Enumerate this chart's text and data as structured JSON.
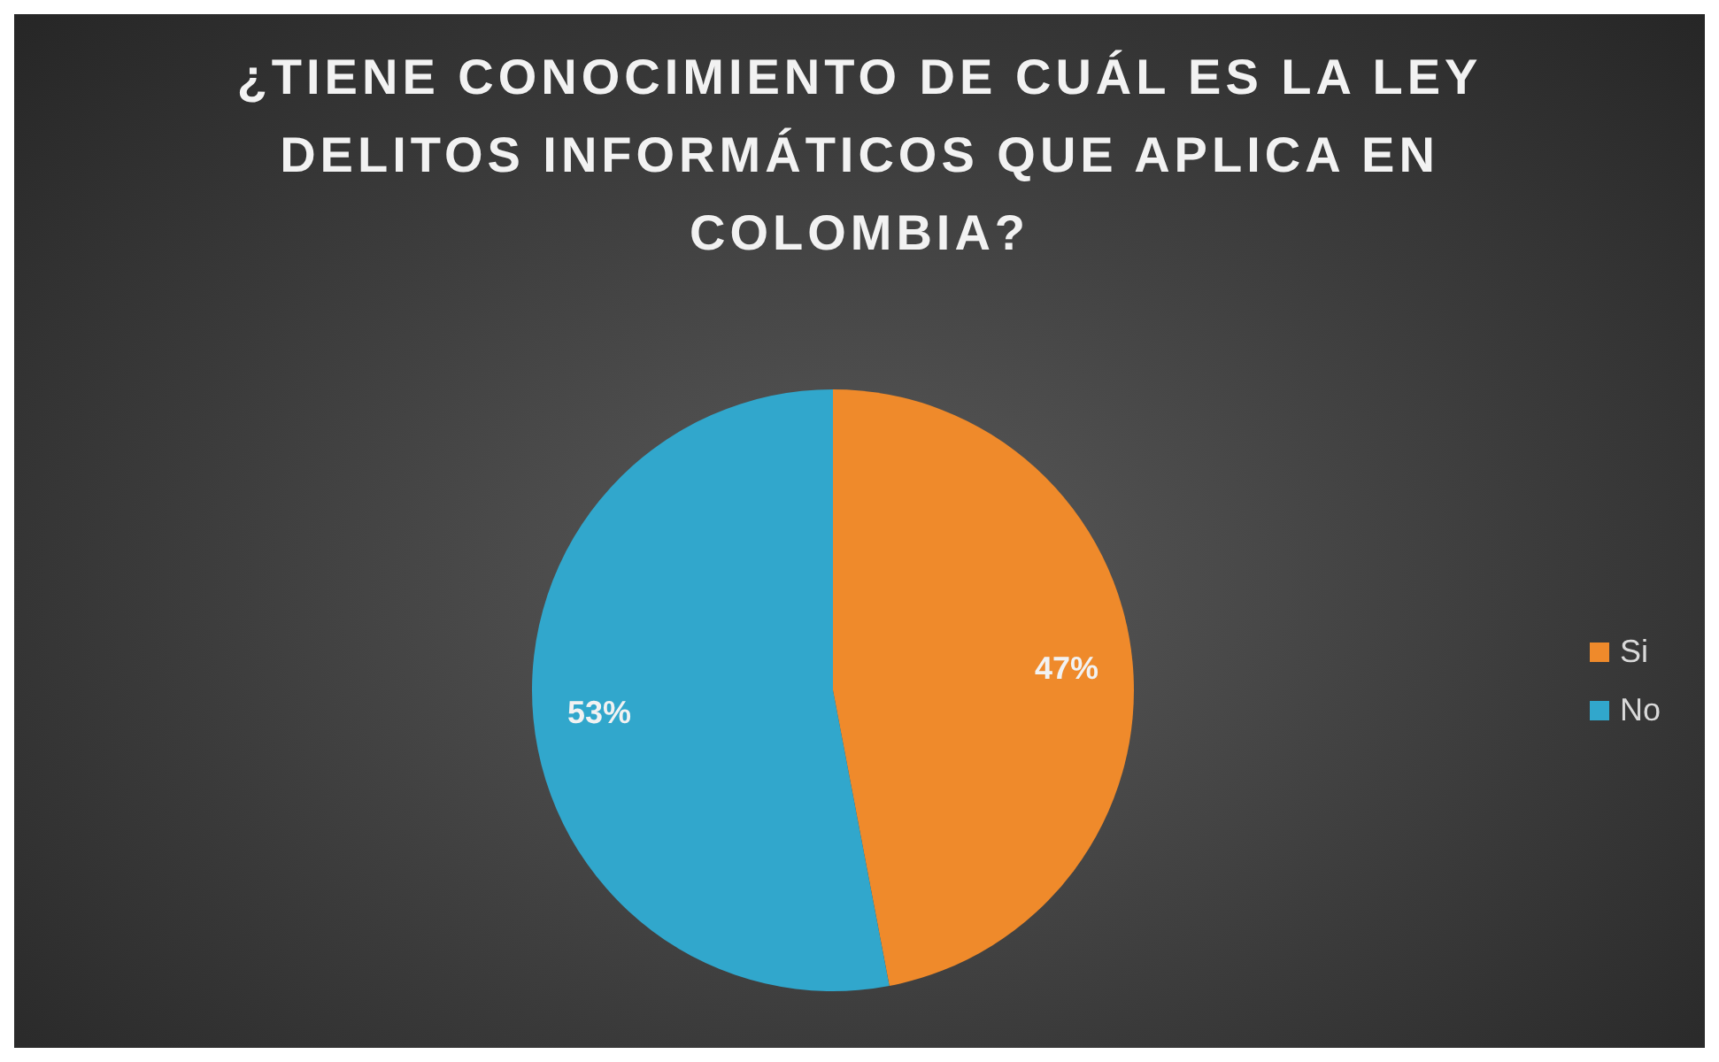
{
  "chart_data": {
    "type": "pie",
    "title": "¿TIENE CONOCIMIENTO DE CUÁL ES LA LEY DELITOS INFORMÁTICOS QUE APLICA EN COLOMBIA?",
    "categories": [
      "Si",
      "No"
    ],
    "values": [
      47,
      53
    ],
    "colors": [
      "#ef8a2b",
      "#31a7cc"
    ],
    "value_labels": [
      "47%",
      "53%"
    ],
    "legend": "right"
  }
}
